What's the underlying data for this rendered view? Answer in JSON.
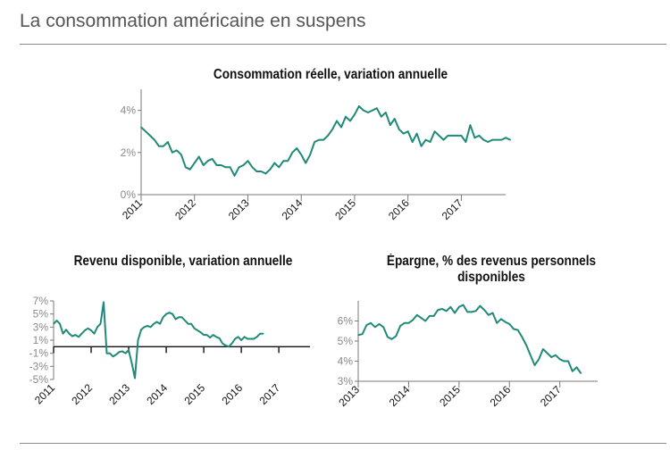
{
  "page": {
    "title": "La consommation américaine en suspens"
  },
  "colors": {
    "line": "#1f8a78",
    "axis": "#7a7a7a",
    "tick_text": "#8a8a8a",
    "title": "#111111"
  },
  "chart_data": [
    {
      "id": "consommation",
      "type": "line",
      "title": "Consommation réelle, variation annuelle",
      "ylim": [
        0,
        5
      ],
      "yticks": [
        0,
        2,
        4
      ],
      "ytick_labels": [
        "0%",
        "2%",
        "4%"
      ],
      "xlim": [
        2011,
        2017.83
      ],
      "xticks": [
        2011,
        2012,
        2013,
        2014,
        2015,
        2016,
        2017
      ],
      "xtick_labels": [
        "2011",
        "2012",
        "2013",
        "2014",
        "2015",
        "2016",
        "2017"
      ],
      "x_interval": "monthly",
      "x_start": "2011-01",
      "values": [
        3.2,
        3.0,
        2.8,
        2.6,
        2.3,
        2.3,
        2.5,
        2.0,
        2.1,
        1.9,
        1.3,
        1.2,
        1.5,
        1.8,
        1.4,
        1.6,
        1.7,
        1.4,
        1.4,
        1.3,
        1.3,
        0.9,
        1.3,
        1.4,
        1.6,
        1.3,
        1.1,
        1.1,
        1.0,
        1.2,
        1.5,
        1.3,
        1.6,
        1.6,
        2.0,
        2.2,
        1.9,
        1.5,
        1.9,
        2.5,
        2.6,
        2.6,
        2.8,
        3.1,
        3.5,
        3.2,
        3.7,
        3.5,
        3.8,
        4.2,
        4.0,
        3.9,
        4.0,
        4.1,
        3.7,
        3.9,
        3.3,
        3.6,
        3.1,
        2.9,
        3.0,
        2.5,
        2.9,
        2.3,
        2.6,
        2.5,
        3.0,
        2.8,
        2.6,
        2.8,
        2.8,
        2.8,
        2.8,
        2.5,
        3.3,
        2.7,
        2.8,
        2.6,
        2.5,
        2.6,
        2.6,
        2.6,
        2.7,
        2.6
      ],
      "grid": false
    },
    {
      "id": "revenu",
      "type": "line",
      "title": "Revenu disponible, variation annuelle",
      "ylim": [
        -5,
        7
      ],
      "yticks": [
        -5,
        -3,
        -1,
        1,
        3,
        5,
        7
      ],
      "ytick_labels": [
        "-5%",
        "-3%",
        "-1%",
        "1%",
        "3%",
        "5%",
        "7%"
      ],
      "xlim": [
        2011,
        2017.83
      ],
      "xticks": [
        2011,
        2012,
        2013,
        2014,
        2015,
        2016,
        2017
      ],
      "xtick_labels": [
        "2011",
        "2012",
        "2013",
        "2014",
        "2015",
        "2016",
        "2017"
      ],
      "x_interval": "monthly",
      "x_start": "2011-01",
      "values": [
        3.5,
        4.0,
        3.5,
        2.0,
        2.6,
        2.0,
        1.6,
        1.8,
        1.5,
        2.0,
        2.5,
        2.8,
        2.5,
        2.0,
        3.0,
        3.5,
        6.8,
        -1.0,
        -1.0,
        -1.5,
        -1.2,
        -0.8,
        -0.7,
        -1.0,
        -0.5,
        -2.5,
        -4.8,
        1.0,
        2.6,
        3.0,
        3.2,
        3.0,
        3.5,
        3.8,
        3.5,
        4.5,
        5.0,
        5.2,
        5.0,
        4.2,
        4.5,
        4.5,
        4.0,
        3.5,
        3.5,
        2.8,
        2.5,
        2.2,
        1.8,
        1.8,
        1.4,
        1.8,
        1.5,
        1.3,
        0.5,
        0.2,
        0.0,
        0.5,
        1.2,
        1.5,
        1.0,
        1.5,
        1.2,
        1.2,
        1.2,
        1.5,
        2.0,
        2.0
      ],
      "grid": false
    },
    {
      "id": "epargne",
      "type": "line",
      "title": "Épargne, % des revenus personnels disponibles",
      "ylim": [
        3,
        7
      ],
      "yticks": [
        3,
        4,
        5,
        6
      ],
      "ytick_labels": [
        "3%",
        "4%",
        "5%",
        "6%"
      ],
      "xlim": [
        2013,
        2017.75
      ],
      "xticks": [
        2013,
        2014,
        2015,
        2016,
        2017
      ],
      "xtick_labels": [
        "2013",
        "2014",
        "2015",
        "2016",
        "2017"
      ],
      "x_interval": "monthly",
      "x_start": "2013-01",
      "values": [
        5.3,
        5.35,
        5.8,
        5.9,
        5.7,
        5.85,
        5.7,
        5.2,
        5.1,
        5.25,
        5.75,
        5.9,
        5.9,
        6.05,
        6.3,
        6.15,
        6.0,
        6.25,
        6.25,
        6.55,
        6.6,
        6.5,
        6.7,
        6.4,
        6.7,
        6.8,
        6.45,
        6.45,
        6.5,
        6.75,
        6.55,
        6.3,
        6.4,
        5.9,
        6.1,
        5.95,
        5.85,
        5.6,
        5.55,
        5.2,
        4.8,
        4.3,
        3.8,
        4.1,
        4.6,
        4.4,
        4.2,
        4.3,
        4.1,
        4.0,
        4.0,
        3.5,
        3.7,
        3.4
      ],
      "grid": false
    }
  ]
}
